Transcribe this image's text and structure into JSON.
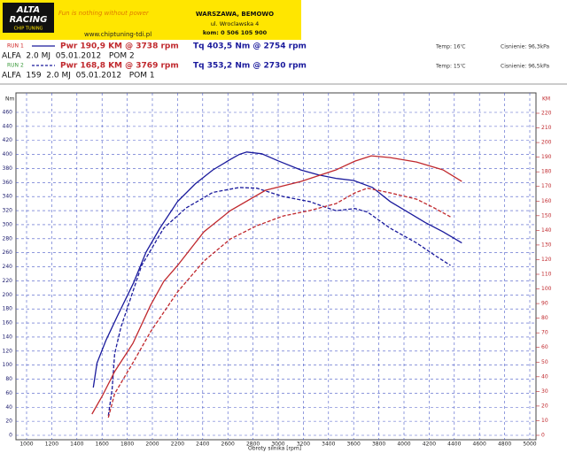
{
  "chart_data": {
    "type": "line",
    "header": {
      "logo_top": "ALTA",
      "logo_mid": "RACING",
      "logo_sub": "CHIP TUNING",
      "slogan": "Fun is nothing without power",
      "url": "www.chiptuning-tdi.pl",
      "city": "WARSZAWA, BEMOWO",
      "street": "ul. Wroclawska 4",
      "phone": "kom: 0 506 105 900"
    },
    "runs": [
      {
        "label": "RUN 1",
        "label_color": "#d02020",
        "dashed": false,
        "power": "Pwr 190,9 KM @ 3738 rpm",
        "torque": "Tq 403,5 Nm @ 2754 rpm",
        "temp": "Temp: 16'C",
        "pressure": "Cisnienie: 96,3kPa",
        "car": "ALFA  2.0 MJ  05.01.2012   POM 2"
      },
      {
        "label": "RUN 2",
        "label_color": "#3a9a3a",
        "dashed": true,
        "power": "Pwr 168,8 KM @ 3769 rpm",
        "torque": "Tq 353,2 Nm @ 2730 rpm",
        "temp": "Temp: 15'C",
        "pressure": "Cisnienie: 96,5kPa",
        "car": "ALFA  159  2.0 MJ  05.01.2012   POM 1"
      }
    ],
    "ylabel": "Nm",
    "y2label": "KM",
    "xlabel": "Obroty silnika [rpm]",
    "xlim": [
      1000,
      5000
    ],
    "xticks": [
      1000,
      1200,
      1400,
      1600,
      1800,
      2000,
      2200,
      2400,
      2600,
      2800,
      3000,
      3200,
      3400,
      3600,
      3800,
      4000,
      4200,
      4400,
      4600,
      4800,
      5000
    ],
    "ylim": [
      0,
      460
    ],
    "yticks": [
      0,
      20,
      40,
      60,
      80,
      100,
      120,
      140,
      160,
      180,
      200,
      220,
      240,
      260,
      280,
      300,
      320,
      340,
      360,
      380,
      400,
      420,
      440,
      460
    ],
    "y2lim": [
      0,
      220
    ],
    "y2ticks": [
      0,
      10,
      20,
      30,
      40,
      50,
      60,
      70,
      80,
      90,
      100,
      110,
      120,
      130,
      140,
      150,
      160,
      170,
      180,
      190,
      200,
      210,
      220
    ],
    "grid": true,
    "series": [
      {
        "color": "#1a1a9c",
        "dashed": false,
        "x": [
          1530,
          1560,
          1630,
          1720,
          1850,
          1950,
          2060,
          2200,
          2340,
          2480,
          2620,
          2690,
          2750,
          2870,
          3000,
          3180,
          3320,
          3460,
          3600,
          3750,
          3890,
          4030,
          4170,
          4310,
          4460
        ],
        "values": [
          68,
          103,
          135,
          169,
          217,
          261,
          295,
          333,
          358,
          378,
          393,
          400,
          403.5,
          401,
          391,
          378,
          371,
          366,
          363,
          353,
          333,
          318,
          303,
          290,
          274
        ]
      },
      {
        "color": "#1a1a9c",
        "dashed": true,
        "x": [
          1650,
          1680,
          1700,
          1750,
          1915,
          2090,
          2270,
          2480,
          2690,
          2830,
          3040,
          3250,
          3390,
          3460,
          3610,
          3710,
          3890,
          4100,
          4240,
          4370
        ],
        "values": [
          28,
          66,
          116,
          154,
          242,
          295,
          324,
          346,
          353,
          352,
          340,
          333,
          324,
          320,
          323,
          318,
          295,
          274,
          257,
          242
        ]
      },
      {
        "color": "#c0282d",
        "dashed": false,
        "axis": "y2",
        "x": [
          1520,
          1600,
          1700,
          1845,
          1985,
          2090,
          2200,
          2410,
          2620,
          2900,
          3180,
          3460,
          3610,
          3740,
          3890,
          4100,
          4310,
          4460
        ],
        "values": [
          14.5,
          26.6,
          43.5,
          62.8,
          88.8,
          105.1,
          116,
          139,
          153.5,
          167.4,
          173.4,
          181.3,
          187.3,
          190.9,
          189.7,
          186.7,
          181.3,
          173.4
        ]
      },
      {
        "color": "#c0282d",
        "dashed": true,
        "axis": "y2",
        "x": [
          1650,
          1700,
          1845,
          1985,
          2200,
          2410,
          2620,
          2830,
          3040,
          3250,
          3460,
          3610,
          3710,
          3890,
          4100,
          4240,
          4370
        ],
        "values": [
          12.1,
          28.4,
          49.5,
          70.7,
          97.9,
          119,
          134.1,
          143.2,
          149.8,
          153.5,
          158.3,
          165.6,
          168.8,
          165.6,
          161.3,
          155.3,
          149.2
        ]
      }
    ]
  }
}
